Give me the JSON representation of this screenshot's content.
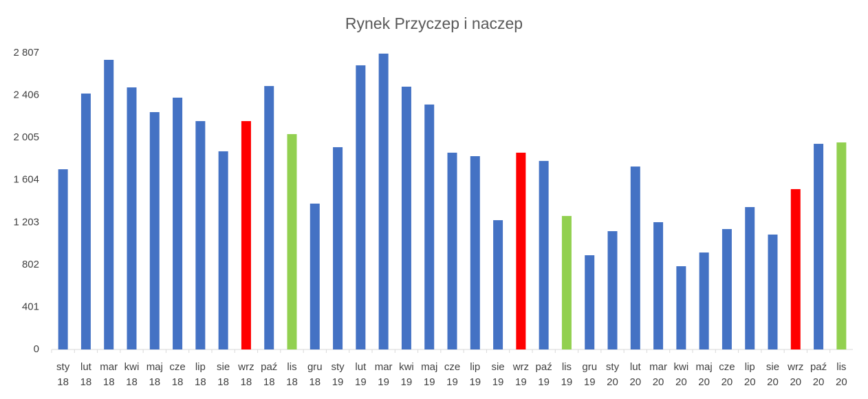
{
  "chart_data": {
    "type": "bar",
    "title": "Rynek Przyczep i naczep",
    "categories": [
      "sty 18",
      "lut 18",
      "mar 18",
      "kwi 18",
      "maj 18",
      "cze 18",
      "lip 18",
      "sie 18",
      "wrz 18",
      "paź 18",
      "lis 18",
      "gru 18",
      "sty 19",
      "lut 19",
      "mar 19",
      "kwi 19",
      "maj 19",
      "cze 19",
      "lip 19",
      "sie 19",
      "wrz 19",
      "paź 19",
      "lis 19",
      "gru 19",
      "sty 20",
      "lut 20",
      "mar 20",
      "kwi 20",
      "maj 20",
      "cze 20",
      "lip 20",
      "sie 20",
      "wrz 20",
      "paź 20",
      "lis 20"
    ],
    "values": [
      1706,
      2423,
      2742,
      2481,
      2247,
      2384,
      2162,
      1876,
      2162,
      2494,
      2039,
      1381,
      1915,
      2690,
      2801,
      2488,
      2319,
      1863,
      1830,
      1224,
      1863,
      1785,
      1264,
      892,
      1120,
      1732,
      1205,
      788,
      918,
      1140,
      1348,
      1088,
      1518,
      1947,
      1960
    ],
    "colors": [
      "#4472c4",
      "#4472c4",
      "#4472c4",
      "#4472c4",
      "#4472c4",
      "#4472c4",
      "#4472c4",
      "#4472c4",
      "#ff0000",
      "#4472c4",
      "#92d050",
      "#4472c4",
      "#4472c4",
      "#4472c4",
      "#4472c4",
      "#4472c4",
      "#4472c4",
      "#4472c4",
      "#4472c4",
      "#4472c4",
      "#ff0000",
      "#4472c4",
      "#92d050",
      "#4472c4",
      "#4472c4",
      "#4472c4",
      "#4472c4",
      "#4472c4",
      "#4472c4",
      "#4472c4",
      "#4472c4",
      "#4472c4",
      "#ff0000",
      "#4472c4",
      "#92d050"
    ],
    "ylim": [
      0,
      2807
    ],
    "yticks": [
      0,
      401,
      802,
      {
        "value": 1203,
        "label": "1 203"
      },
      {
        "value": 1604,
        "label": "1 604"
      },
      {
        "value": 2005,
        "label": "2 005"
      },
      {
        "value": 2406,
        "label": "2 406"
      },
      {
        "value": 2807,
        "label": "2 807"
      }
    ],
    "grid": false
  }
}
